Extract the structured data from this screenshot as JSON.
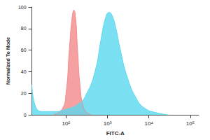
{
  "chart_data": {
    "type": "area",
    "x_label": "FITC-A",
    "y_label": "Normalized To Mode",
    "log": "x",
    "grid": false,
    "xlim": [
      15,
      160000
    ],
    "xticks": [
      {
        "value": 100,
        "label": "10²"
      },
      {
        "value": 1000,
        "label": "10³"
      },
      {
        "value": 10000,
        "label": "10⁴"
      },
      {
        "value": 100000,
        "label": "10⁵"
      }
    ],
    "ylim": [
      0,
      100
    ],
    "yticks": [
      0,
      20,
      40,
      60,
      80,
      100
    ],
    "series": [
      {
        "color": "#f28a8a",
        "x": [
          50,
          80,
          100,
          120,
          140,
          155,
          170,
          190,
          220,
          260,
          320,
          400
        ],
        "values": [
          0,
          5,
          20,
          60,
          90,
          97,
          90,
          60,
          25,
          8,
          2,
          0
        ]
      },
      {
        "color": "#5ad8ee",
        "x": [
          15,
          20,
          30,
          50,
          100,
          200,
          300,
          500,
          700,
          900,
          1100,
          1300,
          1600,
          2000,
          3000,
          5000,
          8000,
          15000,
          30000
        ],
        "values": [
          28,
          5,
          3,
          3,
          5,
          10,
          18,
          40,
          70,
          90,
          95,
          92,
          80,
          62,
          35,
          15,
          6,
          2,
          0
        ]
      }
    ]
  }
}
